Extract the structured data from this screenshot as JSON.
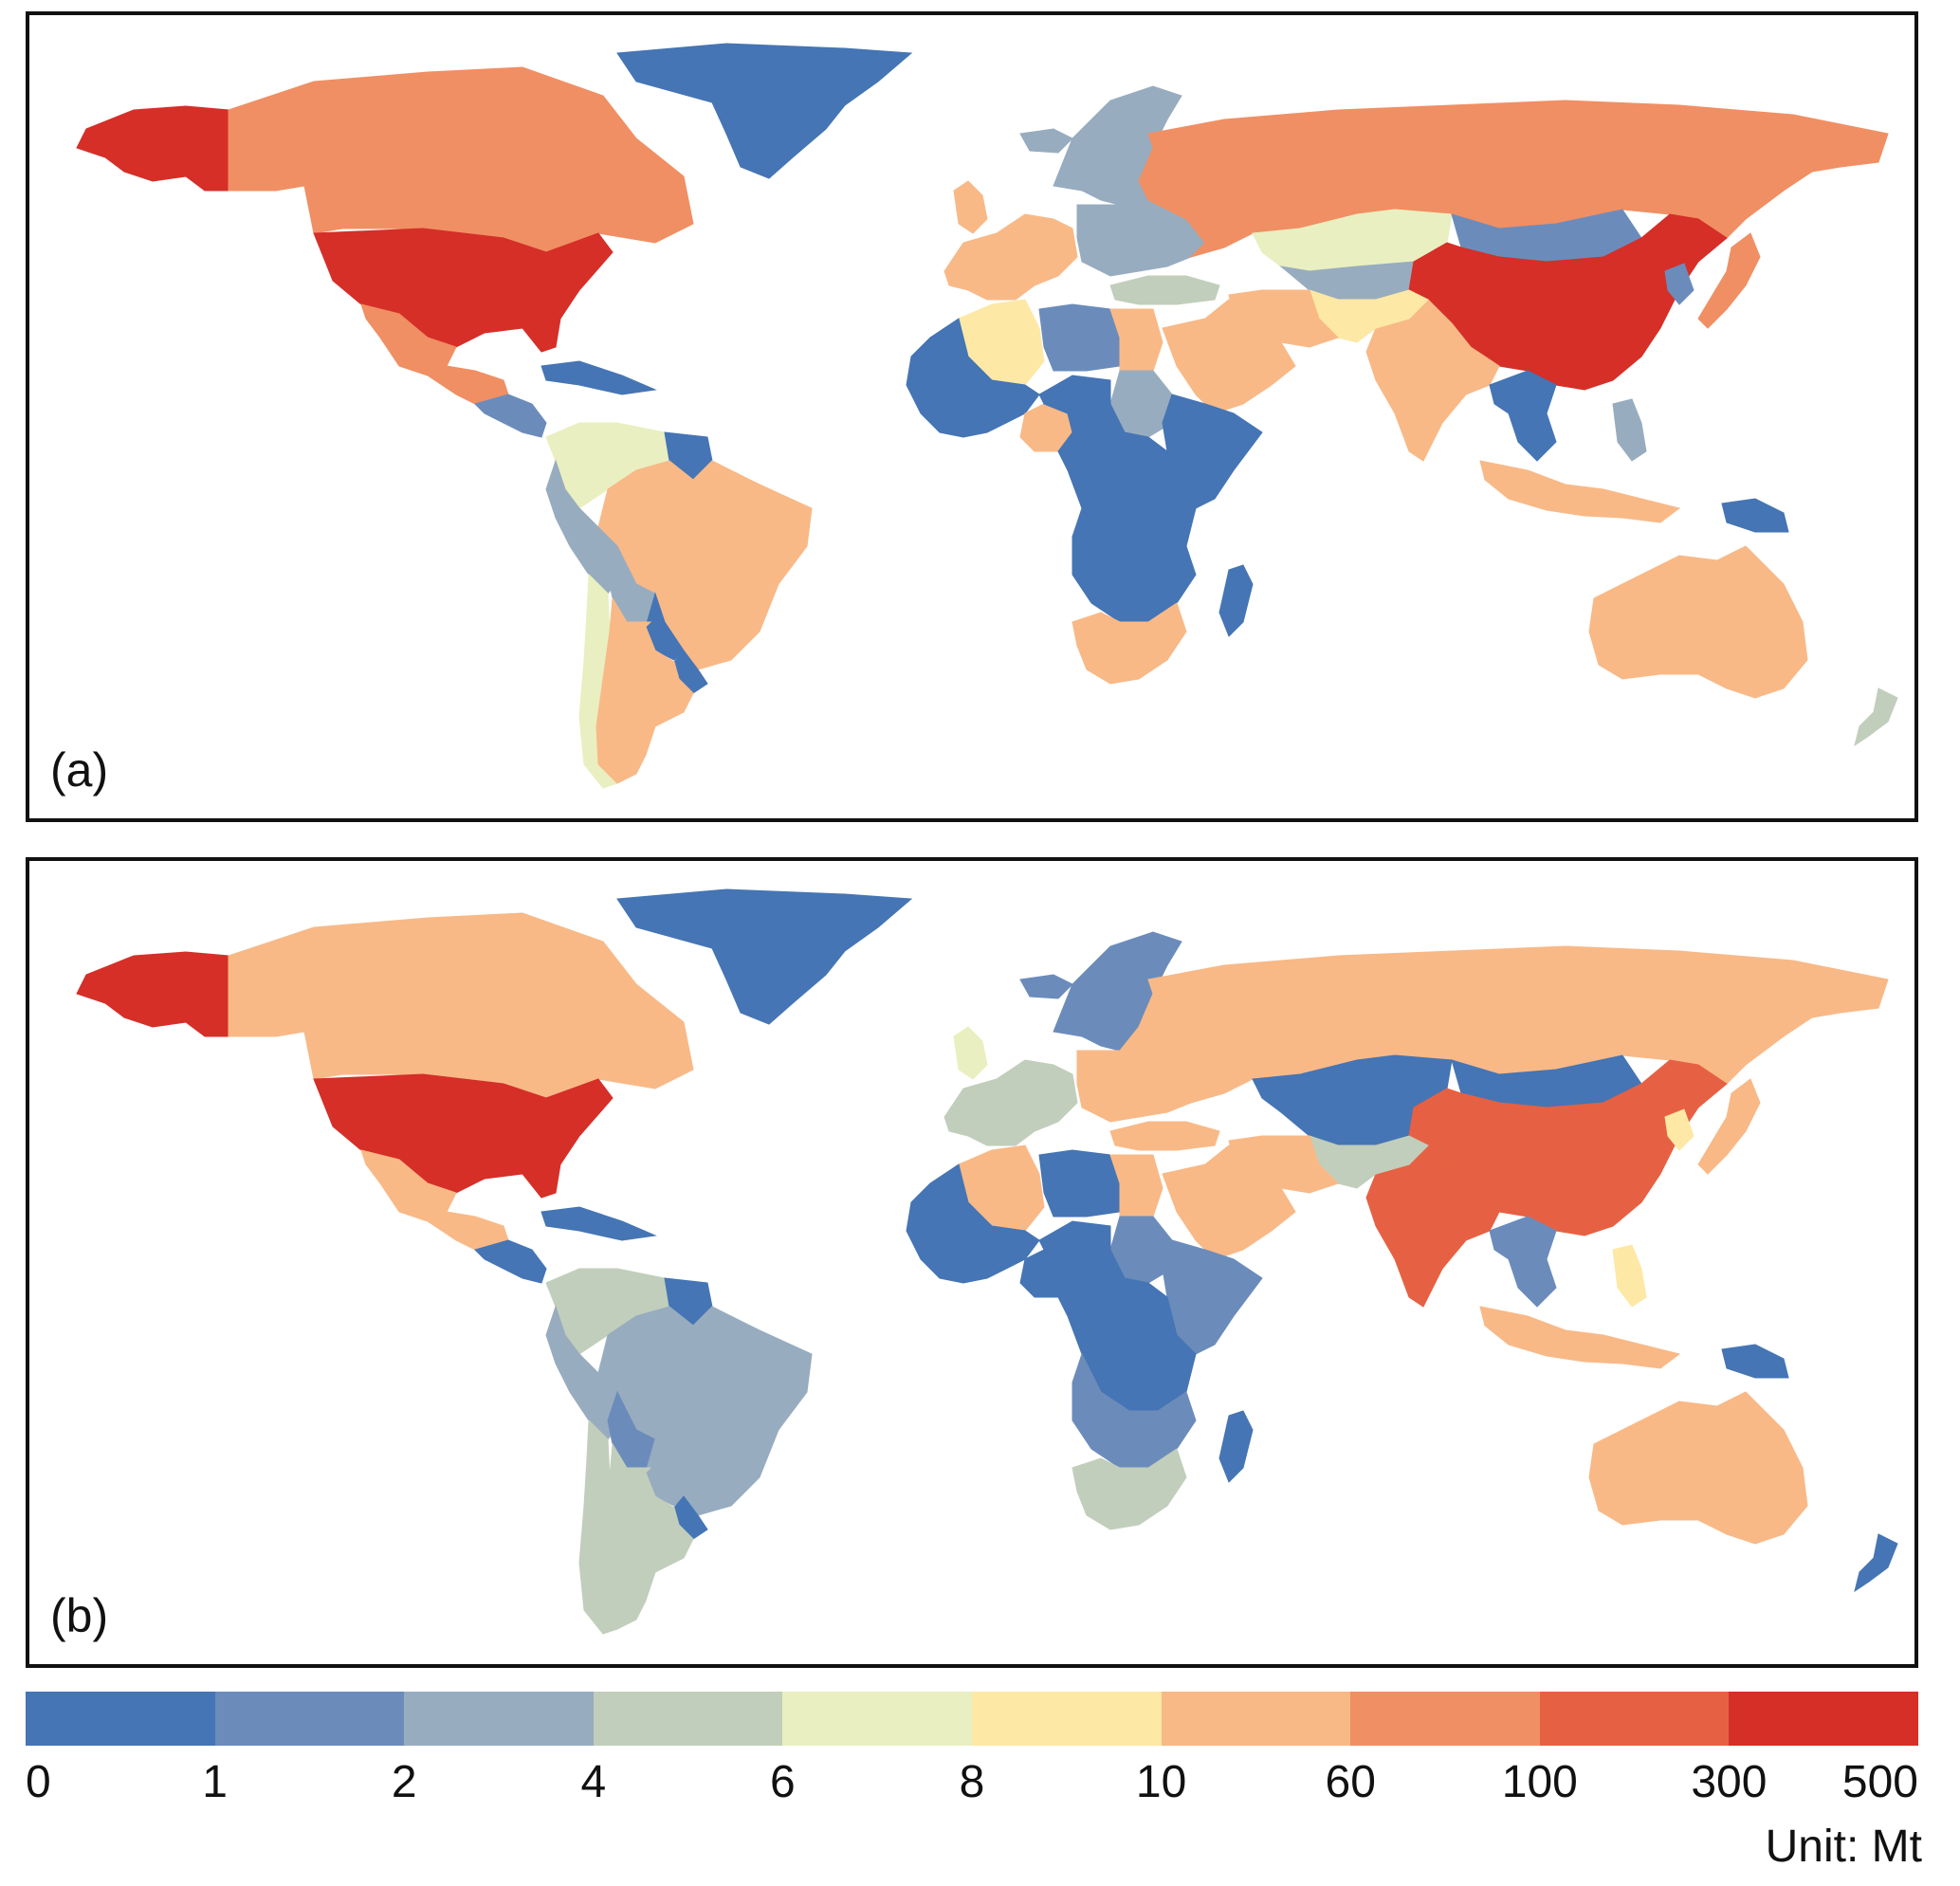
{
  "panels": [
    {
      "id": "a",
      "label": "(a)",
      "regions": {
        "greenland": 0,
        "alaska": 9,
        "canada": 7,
        "usa": 9,
        "mexico": 7,
        "central_america": 1,
        "caribbean": 0,
        "colombia_venezuela": 4,
        "guianas": 0,
        "brazil": 6,
        "peru_ecuador": 2,
        "bolivia": 2,
        "paraguay": 0,
        "uruguay": 0,
        "chile": 4,
        "argentina": 6,
        "iceland": 2,
        "scandinavia": 2,
        "uk": 6,
        "western_europe": 6,
        "eastern_europe": 2,
        "russia": 7,
        "kazakhstan": 4,
        "central_asia": 2,
        "mongolia": 1,
        "china": 9,
        "japan": 7,
        "korea": 1,
        "india": 6,
        "pakistan_afghanistan": 5,
        "iran": 6,
        "arabia": 6,
        "turkey": 3,
        "southeast_asia": 0,
        "indonesia": 6,
        "png": 0,
        "philippines": 2,
        "australia": 6,
        "new_zealand": 3,
        "algeria": 5,
        "libya": 1,
        "egypt": 6,
        "west_africa": 0,
        "nigeria": 6,
        "sudan": 2,
        "east_africa": 0,
        "central_africa": 0,
        "southern_africa": 0,
        "south_africa": 6,
        "madagascar": 0
      }
    },
    {
      "id": "b",
      "label": "(b)",
      "regions": {
        "greenland": 0,
        "alaska": 9,
        "canada": 6,
        "usa": 9,
        "mexico": 6,
        "central_america": 0,
        "caribbean": 0,
        "colombia_venezuela": 3,
        "guianas": 0,
        "brazil": 2,
        "peru_ecuador": 2,
        "bolivia": 1,
        "paraguay": 2,
        "uruguay": 0,
        "chile": 3,
        "argentina": 3,
        "iceland": 1,
        "scandinavia": 1,
        "uk": 4,
        "western_europe": 3,
        "eastern_europe": 6,
        "russia": 6,
        "kazakhstan": 0,
        "central_asia": 0,
        "mongolia": 0,
        "china": 8,
        "japan": 6,
        "korea": 5,
        "india": 8,
        "pakistan_afghanistan": 3,
        "iran": 6,
        "arabia": 6,
        "turkey": 6,
        "southeast_asia": 1,
        "indonesia": 6,
        "png": 0,
        "philippines": 5,
        "australia": 6,
        "new_zealand": 0,
        "algeria": 6,
        "libya": 0,
        "egypt": 6,
        "west_africa": 0,
        "nigeria": 0,
        "sudan": 1,
        "east_africa": 1,
        "central_africa": 0,
        "southern_africa": 1,
        "south_africa": 3,
        "madagascar": 0
      }
    }
  ],
  "legend": {
    "colors": [
      "#4575b4",
      "#6b8cbb",
      "#98acbf",
      "#c1cebb",
      "#e9efc0",
      "#fee8a6",
      "#f8b987",
      "#f08f63",
      "#e66143",
      "#d52f28"
    ],
    "ticks": [
      "0",
      "1",
      "2",
      "4",
      "6",
      "8",
      "10",
      "60",
      "100",
      "300",
      "500"
    ],
    "unit": "Unit: Mt"
  }
}
